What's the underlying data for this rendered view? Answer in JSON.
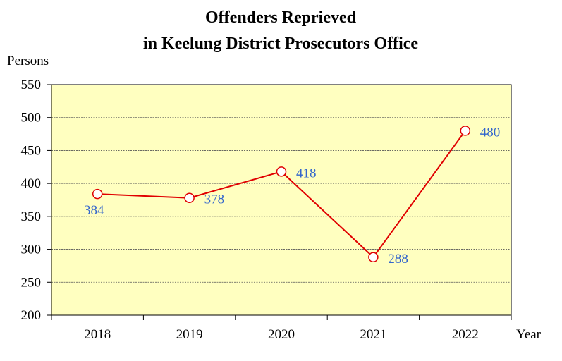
{
  "chart_data": {
    "type": "line",
    "title_line1": "Offenders Reprieved",
    "title_line2": "in Keelung District Prosecutors Office",
    "ylabel": "Persons",
    "xlabel": "Year",
    "categories": [
      "2018",
      "2019",
      "2020",
      "2021",
      "2022"
    ],
    "series": [
      {
        "values": [
          384,
          378,
          418,
          288,
          480
        ]
      }
    ],
    "data_labels": [
      "384",
      "378",
      "418",
      "288",
      "480"
    ],
    "yticks": [
      "200",
      "250",
      "300",
      "350",
      "400",
      "450",
      "500",
      "550"
    ],
    "ylim": [
      200,
      550
    ],
    "grid": true,
    "colors": {
      "plot_background": "#ffffc0",
      "line": "#e00000",
      "marker_fill": "#ffffff",
      "data_label": "#3366cc",
      "grid": "#555555"
    }
  }
}
